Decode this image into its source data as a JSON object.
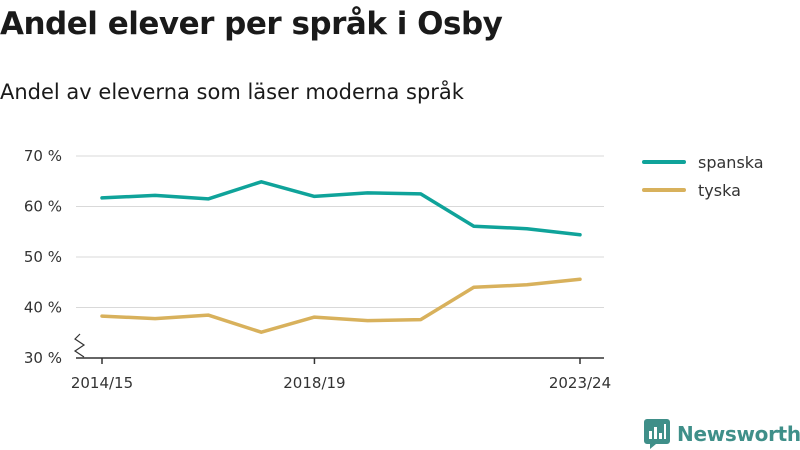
{
  "title": "Andel elever per språk i Osby",
  "subtitle": "Andel av eleverna som läser moderna språk",
  "brand": {
    "name": "Newsworthy",
    "icon": "newsworthy-logo-icon"
  },
  "colors": {
    "spanska": "#0fa39a",
    "tyska": "#d8b15c",
    "grid": "#d9d9d9",
    "axis": "#333333",
    "brand": "#3f8f89"
  },
  "chart_data": {
    "type": "line",
    "x": [
      "2014/15",
      "2015/16",
      "2016/17",
      "2017/18",
      "2018/19",
      "2019/20",
      "2020/21",
      "2021/22",
      "2022/23",
      "2023/24"
    ],
    "x_tick_labels": [
      "2014/15",
      "2018/19",
      "2023/24"
    ],
    "y_ticks": [
      "30 %",
      "40 %",
      "50 %",
      "60 %",
      "70 %"
    ],
    "ylim": [
      30,
      70
    ],
    "y_axis_break": true,
    "grid": true,
    "legend_position": "right",
    "series": [
      {
        "name": "spanska",
        "values": [
          61.7,
          62.2,
          61.5,
          64.9,
          62.0,
          62.7,
          62.5,
          56.1,
          55.6,
          54.4
        ]
      },
      {
        "name": "tyska",
        "values": [
          38.3,
          37.8,
          38.5,
          35.1,
          38.1,
          37.4,
          37.6,
          44.0,
          44.5,
          45.6
        ]
      }
    ]
  }
}
